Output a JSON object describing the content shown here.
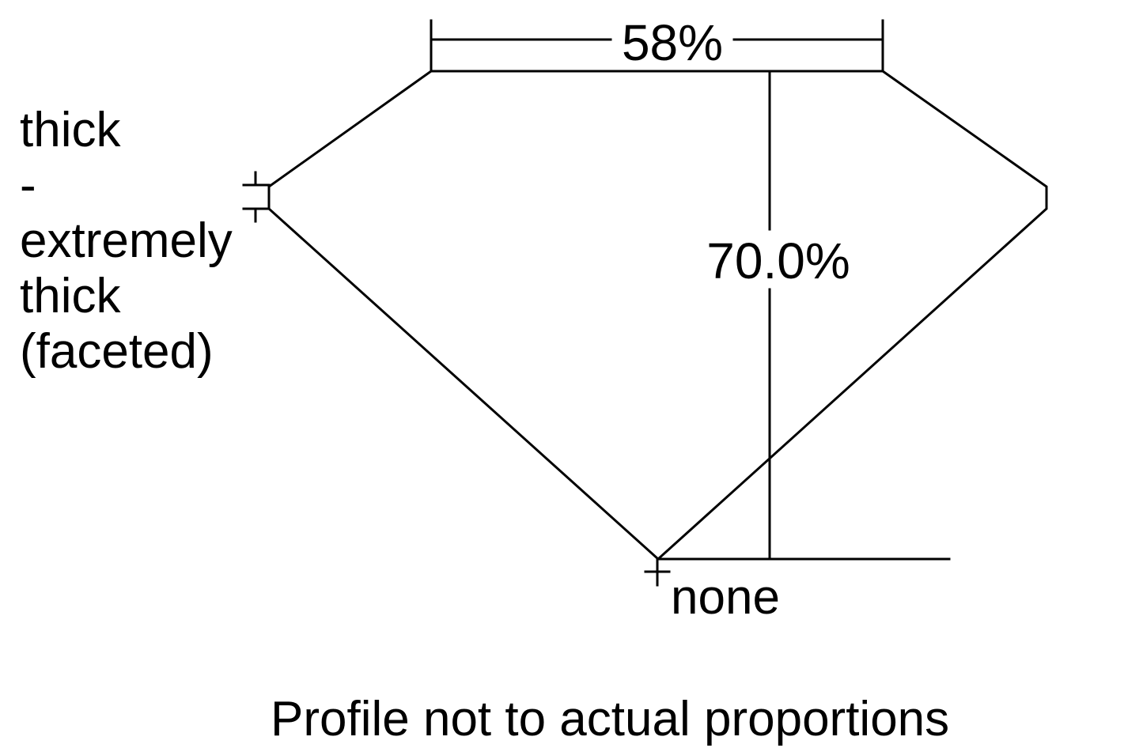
{
  "diagram": {
    "table_label": "58%",
    "depth_label": "70.0%",
    "girdle_label_lines": [
      "thick",
      "-",
      "extremely",
      "thick",
      "(faceted)"
    ],
    "culet_label": "none",
    "footnote": "Profile not to actual proportions",
    "stroke_color": "#000000",
    "background_color": "#ffffff"
  }
}
